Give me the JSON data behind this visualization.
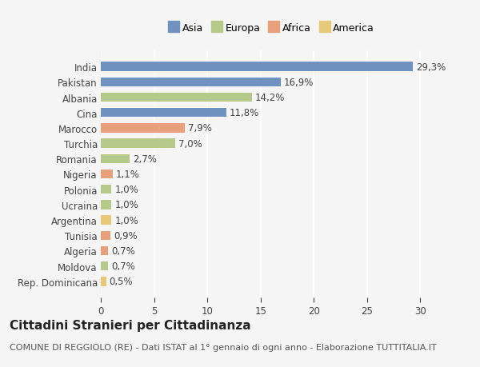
{
  "categories": [
    "Rep. Dominicana",
    "Moldova",
    "Algeria",
    "Tunisia",
    "Argentina",
    "Ucraina",
    "Polonia",
    "Nigeria",
    "Romania",
    "Turchia",
    "Marocco",
    "Cina",
    "Albania",
    "Pakistan",
    "India"
  ],
  "values": [
    0.5,
    0.7,
    0.7,
    0.9,
    1.0,
    1.0,
    1.0,
    1.1,
    2.7,
    7.0,
    7.9,
    11.8,
    14.2,
    16.9,
    29.3
  ],
  "colors": [
    "#e8c97a",
    "#b5c98a",
    "#e8a07a",
    "#e8a07a",
    "#e8c97a",
    "#b5c98a",
    "#b5c98a",
    "#e8a07a",
    "#b5c98a",
    "#b5c98a",
    "#e8a07a",
    "#7092c0",
    "#b5c98a",
    "#7092c0",
    "#7092c0"
  ],
  "legend_labels": [
    "Asia",
    "Europa",
    "Africa",
    "America"
  ],
  "legend_colors": [
    "#7092c0",
    "#b5c98a",
    "#e8a07a",
    "#e8c97a"
  ],
  "title": "Cittadini Stranieri per Cittadinanza",
  "subtitle": "COMUNE DI REGGIOLO (RE) - Dati ISTAT al 1° gennaio di ogni anno - Elaborazione TUTTITALIA.IT",
  "xlim": [
    0,
    32
  ],
  "xticks": [
    0,
    5,
    10,
    15,
    20,
    25,
    30
  ],
  "background_color": "#f5f5f5",
  "bar_height": 0.6,
  "title_fontsize": 11,
  "subtitle_fontsize": 8,
  "label_fontsize": 8.5,
  "tick_fontsize": 8.5,
  "legend_fontsize": 9
}
